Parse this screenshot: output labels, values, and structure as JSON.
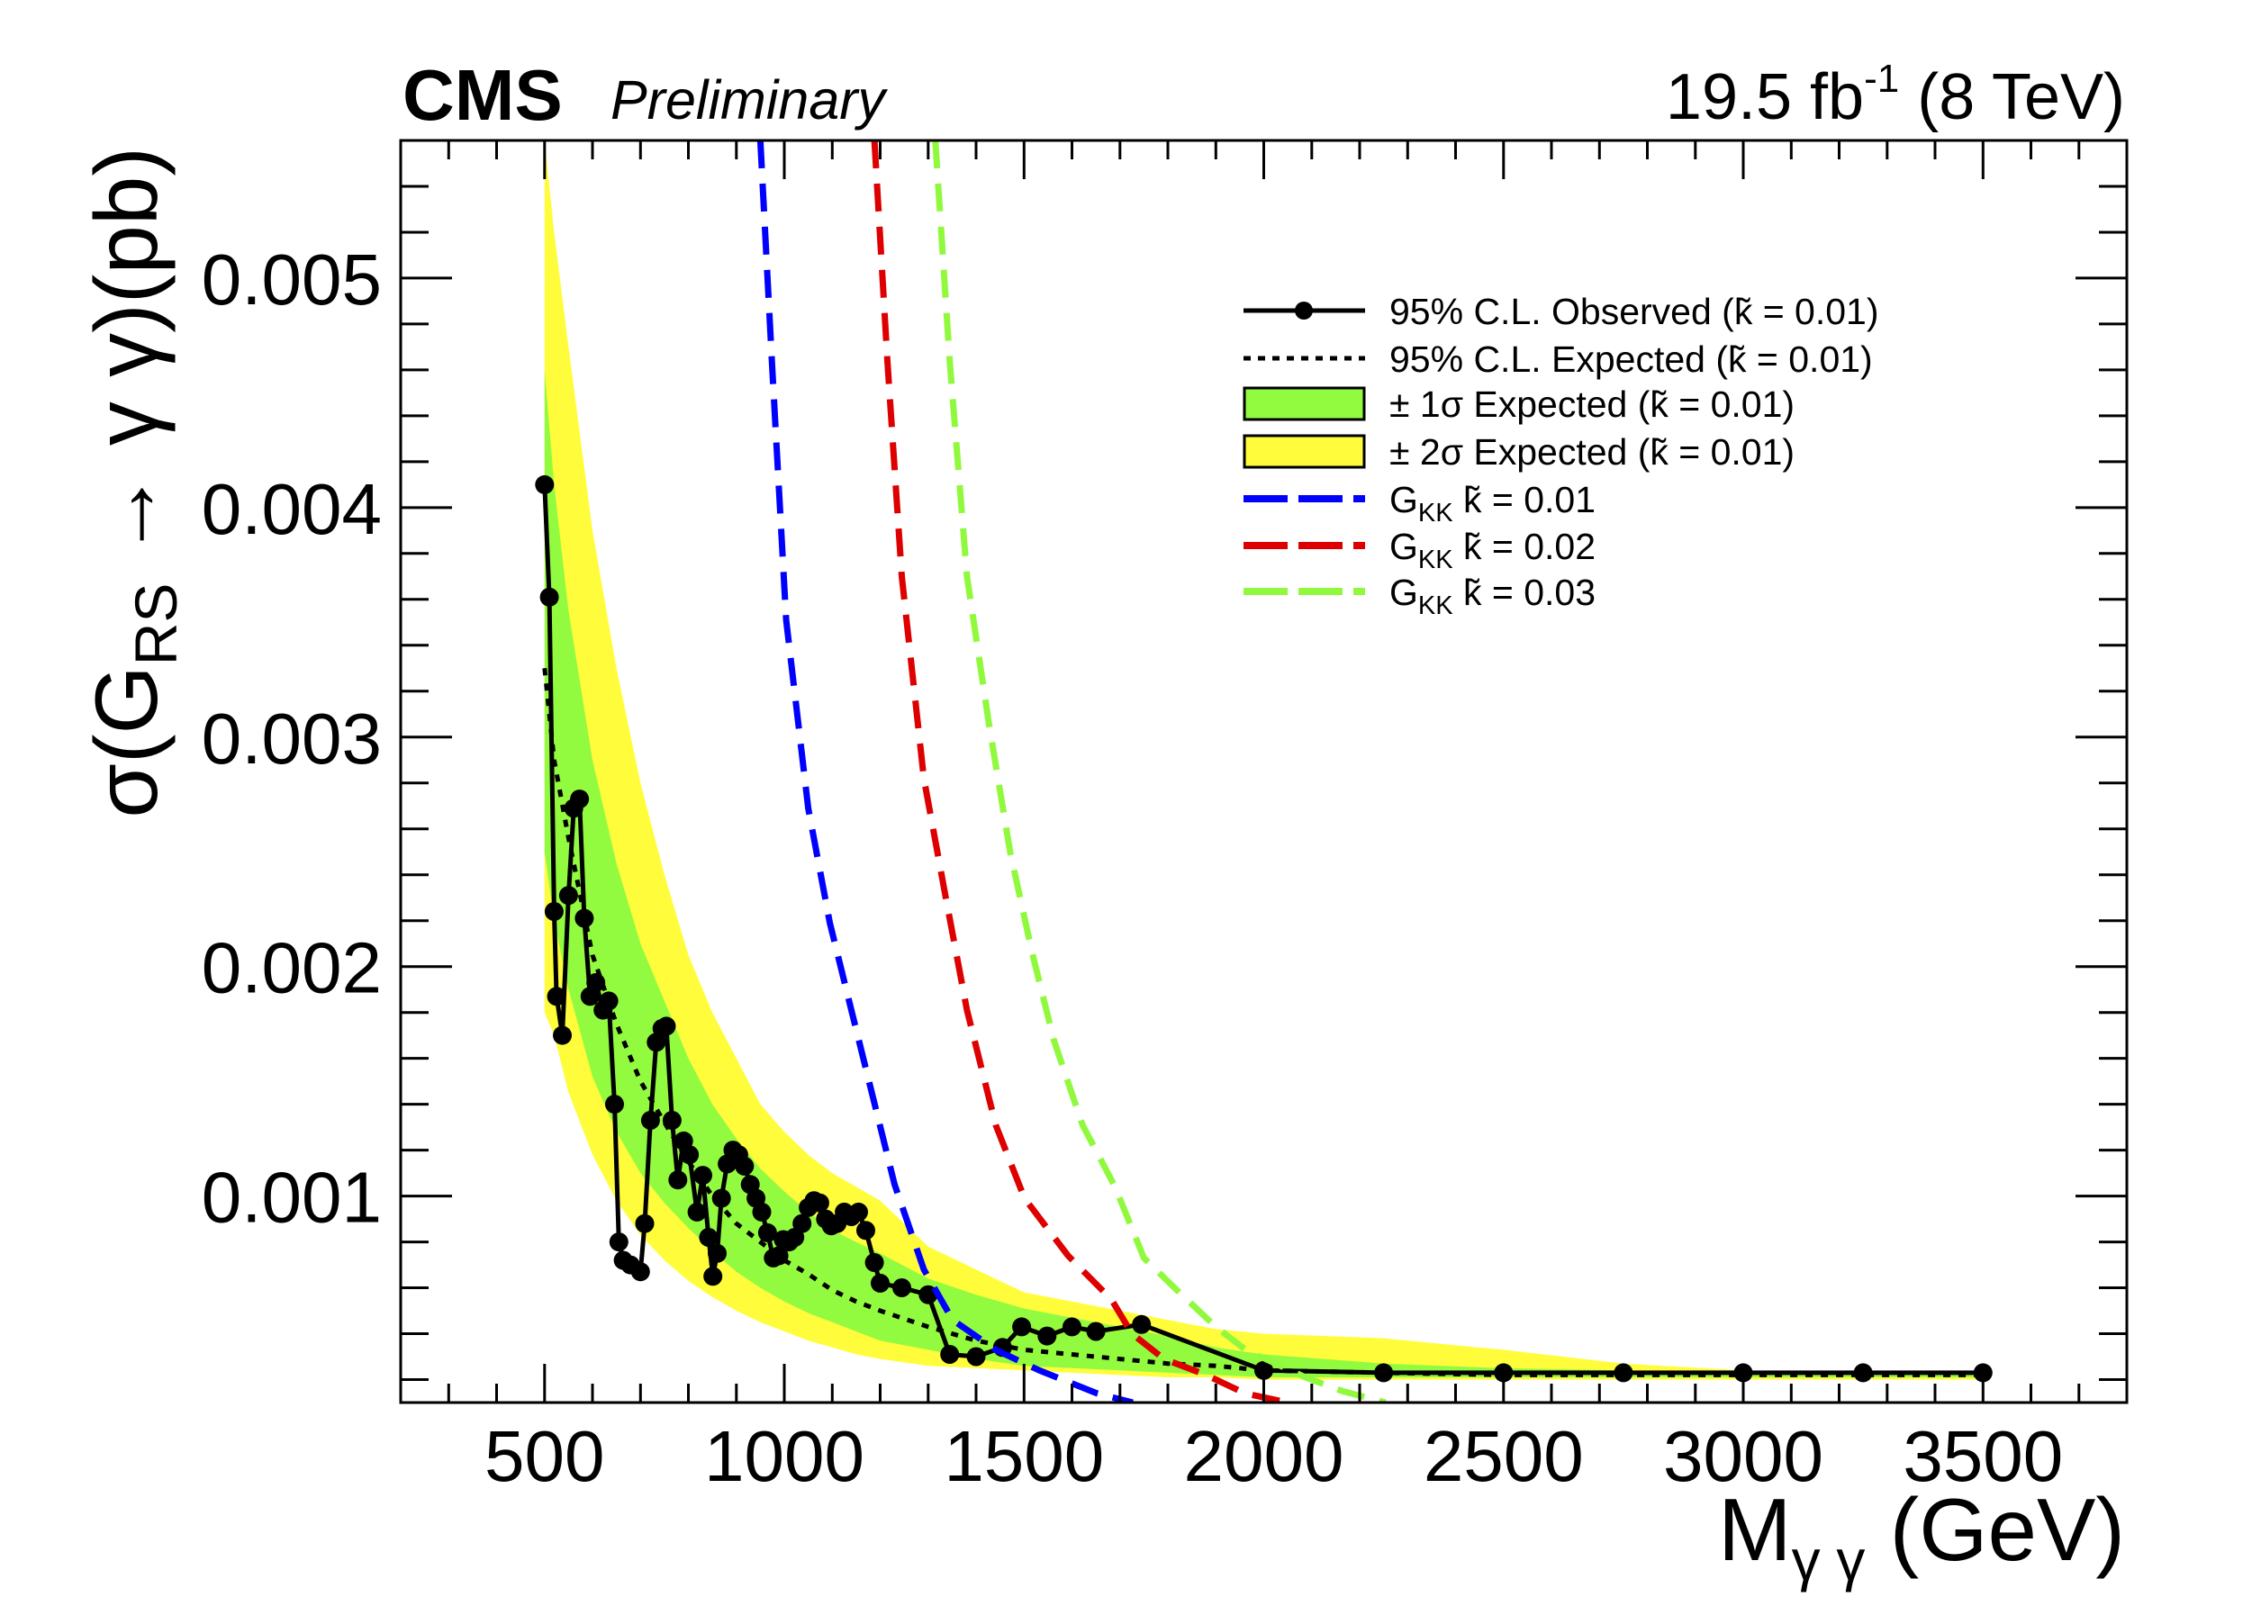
{
  "header": {
    "experiment": "CMS",
    "status": "Preliminary",
    "lumi_value": "19.5 fb",
    "lumi_sup": "-1",
    "energy": " (8 TeV)"
  },
  "chart_data": {
    "type": "line",
    "title": "",
    "xlabel": {
      "main": "M",
      "sub": "γ γ",
      "unit": " (GeV)"
    },
    "ylabel": {
      "main": "σ(G",
      "sub": "RS",
      "rest": " → γ γ)(pb)"
    },
    "x_range": [
      200,
      3800
    ],
    "y_range": [
      0.0001,
      0.0056
    ],
    "x_ticks": [
      500,
      1000,
      1500,
      2000,
      2500,
      3000,
      3500
    ],
    "x_tick_labels": [
      "500",
      "1000",
      "1500",
      "2000",
      "2500",
      "3000",
      "3500"
    ],
    "x_minor_step": 100,
    "y_ticks": [
      0.001,
      0.002,
      0.003,
      0.004,
      0.005
    ],
    "y_tick_labels": [
      "0.001",
      "0.002",
      "0.003",
      "0.004",
      "0.005"
    ],
    "y_minor_step": 0.0002,
    "grid": false,
    "legend_position": "top-right",
    "colors": {
      "observed": "#000000",
      "expected": "#000000",
      "band_1sigma": "#93fb3f",
      "band_2sigma": "#fffd3b",
      "theory_k001": "#0000ff",
      "theory_k002": "#de0000",
      "theory_k003": "#91f93d"
    },
    "observed": {
      "x": [
        500,
        510,
        520,
        525,
        537,
        550,
        561,
        573,
        583,
        595,
        607,
        622,
        634,
        646,
        655,
        664,
        679,
        700,
        709,
        721,
        733,
        745,
        754,
        766,
        778,
        790,
        802,
        818,
        830,
        842,
        851,
        860,
        869,
        881,
        893,
        905,
        917,
        929,
        941,
        953,
        965,
        977,
        989,
        998,
        1010,
        1022,
        1037,
        1050,
        1062,
        1074,
        1086,
        1098,
        1110,
        1125,
        1140,
        1155,
        1170,
        1188,
        1200,
        1245,
        1300,
        1345,
        1400,
        1455,
        1495,
        1548,
        1600,
        1650,
        1745,
        2000,
        2250,
        2500,
        2750,
        3000,
        3250,
        3500
      ],
      "y": [
        0.0041,
        0.00361,
        0.00224,
        0.00187,
        0.0017,
        0.00231,
        0.00269,
        0.00273,
        0.00221,
        0.00187,
        0.00193,
        0.00181,
        0.00185,
        0.0014,
        0.0008,
        0.00072,
        0.0007,
        0.00067,
        0.00088,
        0.00133,
        0.00167,
        0.00173,
        0.00174,
        0.00133,
        0.00107,
        0.00124,
        0.00118,
        0.00093,
        0.00109,
        0.00082,
        0.00065,
        0.00075,
        0.00099,
        0.00114,
        0.0012,
        0.00118,
        0.00113,
        0.00105,
        0.00099,
        0.00093,
        0.00084,
        0.00073,
        0.00074,
        0.00081,
        0.0008,
        0.00082,
        0.00088,
        0.00095,
        0.00098,
        0.00097,
        0.0009,
        0.00087,
        0.00088,
        0.00093,
        0.00091,
        0.00093,
        0.00085,
        0.00071,
        0.00062,
        0.0006,
        0.00057,
        0.00031,
        0.0003,
        0.00034,
        0.00043,
        0.00039,
        0.00043,
        0.00041,
        0.00044,
        0.00024,
        0.00023,
        0.00023,
        0.00023,
        0.00023,
        0.00023,
        0.00023
      ]
    },
    "band_x": [
      500,
      520,
      550,
      600,
      650,
      700,
      750,
      800,
      850,
      900,
      950,
      1000,
      1050,
      1100,
      1150,
      1200,
      1300,
      1400,
      1500,
      1600,
      1700,
      1800,
      1900,
      2000,
      2250,
      2500,
      2750,
      3000,
      3250,
      3500
    ],
    "expected": [
      0.0033,
      0.0029,
      0.00256,
      0.00205,
      0.00175,
      0.0015,
      0.00132,
      0.00115,
      0.001,
      0.00088,
      0.0008,
      0.00072,
      0.00066,
      0.00059,
      0.00054,
      0.0005,
      0.00043,
      0.00037,
      0.00033,
      0.00031,
      0.00029,
      0.00027,
      0.00026,
      0.00024,
      0.00023,
      0.00022,
      0.00022,
      0.00022,
      0.00022,
      0.00022
    ],
    "band_1sigma": {
      "high": [
        0.0046,
        0.0041,
        0.00355,
        0.0029,
        0.00245,
        0.0021,
        0.00185,
        0.0016,
        0.0014,
        0.00125,
        0.00112,
        0.00102,
        0.00093,
        0.00085,
        0.0008,
        0.00075,
        0.00064,
        0.00057,
        0.00051,
        0.00047,
        0.00043,
        0.00039,
        0.00034,
        0.00031,
        0.00027,
        0.00025,
        0.00024,
        0.00023,
        0.00023,
        0.00022
      ],
      "low": [
        0.0025,
        0.0022,
        0.0019,
        0.00152,
        0.00128,
        0.0011,
        0.00097,
        0.00086,
        0.00076,
        0.00067,
        0.0006,
        0.00054,
        0.00049,
        0.00045,
        0.00041,
        0.00037,
        0.00033,
        0.00029,
        0.00026,
        0.00025,
        0.00024,
        0.00023,
        0.00022,
        0.00021,
        0.00021,
        0.00021,
        0.00021,
        0.00021,
        0.00021,
        0.00021
      ]
    },
    "band_2sigma": {
      "high": [
        0.0056,
        0.0052,
        0.0047,
        0.0039,
        0.0033,
        0.0028,
        0.0024,
        0.00205,
        0.0018,
        0.0016,
        0.0014,
        0.00128,
        0.00118,
        0.0011,
        0.00104,
        0.00098,
        0.00078,
        0.00068,
        0.00058,
        0.00054,
        0.0005,
        0.00046,
        0.00042,
        0.0004,
        0.00038,
        0.00033,
        0.00027,
        0.00024,
        0.00023,
        0.00023
      ],
      "low": [
        0.0018,
        0.0017,
        0.00145,
        0.00118,
        0.00098,
        0.00083,
        0.00072,
        0.00063,
        0.00056,
        0.0005,
        0.00045,
        0.00041,
        0.00037,
        0.00034,
        0.00031,
        0.00029,
        0.00026,
        0.00025,
        0.00024,
        0.00023,
        0.00022,
        0.00021,
        0.00021,
        0.0002,
        0.0002,
        0.0002,
        0.0002,
        0.0002,
        0.0002,
        0.0002
      ]
    },
    "theory": [
      {
        "key": "theory_k001",
        "k": "0.01",
        "x": [
          950,
          974,
          1004,
          1050,
          1095,
          1140,
          1185,
          1230,
          1291,
          1351,
          1441,
          1532,
          1652,
          1727
        ],
        "y": [
          0.0056,
          0.00464,
          0.00351,
          0.00269,
          0.00219,
          0.00181,
          0.00143,
          0.00105,
          0.00068,
          0.00046,
          0.00033,
          0.00024,
          0.00014,
          0.0001
        ]
      },
      {
        "key": "theory_k002",
        "k": "0.02",
        "x": [
          1188,
          1215,
          1245,
          1291,
          1336,
          1381,
          1441,
          1501,
          1592,
          1682,
          1725,
          1792,
          1880,
          1961,
          2050
        ],
        "y": [
          0.0056,
          0.00464,
          0.0037,
          0.00282,
          0.00231,
          0.00181,
          0.00131,
          0.00099,
          0.00074,
          0.00055,
          0.0004,
          0.00029,
          0.00022,
          0.00014,
          0.0001
        ]
      },
      {
        "key": "theory_k003",
        "k": "0.03",
        "x": [
          1315,
          1345,
          1381,
          1426,
          1471,
          1517,
          1562,
          1622,
          1690,
          1750,
          1819,
          1900,
          1962,
          2087,
          2164,
          2254
        ],
        "y": [
          0.0056,
          0.00464,
          0.0037,
          0.00307,
          0.0025,
          0.00206,
          0.00168,
          0.00131,
          0.00104,
          0.00073,
          0.00059,
          0.00043,
          0.00033,
          0.00021,
          0.00015,
          0.0001
        ]
      }
    ],
    "legend": [
      {
        "label": "95% C.L. Observed (k̃ = 0.01)"
      },
      {
        "label": "95% C.L. Expected (k̃ = 0.01)"
      },
      {
        "label": "± 1σ Expected (k̃ = 0.01)"
      },
      {
        "label": "± 2σ Expected (k̃ = 0.01)"
      },
      {
        "prefix": "G",
        "sub": "KK",
        "suffix": " k̃ = 0.01"
      },
      {
        "prefix": "G",
        "sub": "KK",
        "suffix": " k̃ = 0.02"
      },
      {
        "prefix": "G",
        "sub": "KK",
        "suffix": " k̃ = 0.03"
      }
    ]
  }
}
